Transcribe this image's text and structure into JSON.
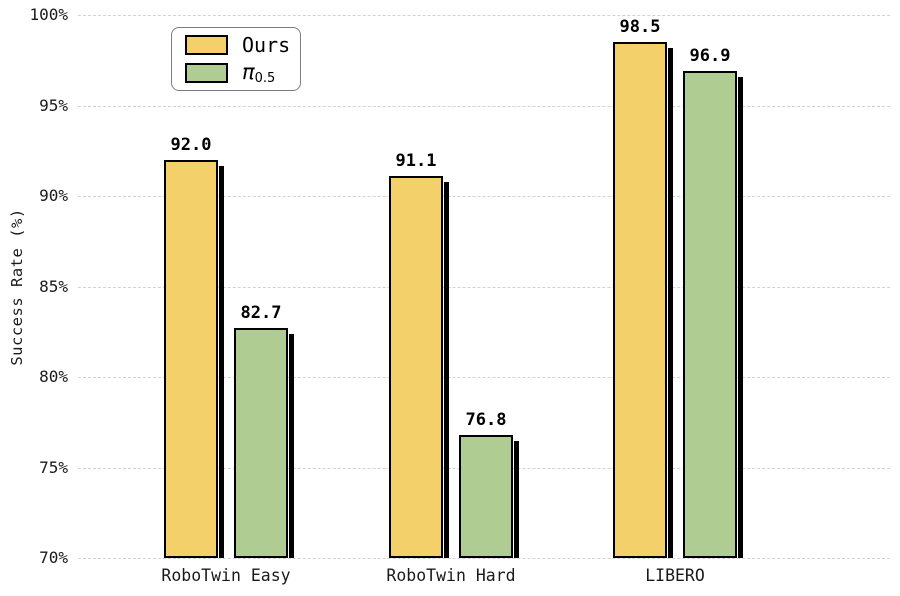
{
  "chart_data": {
    "type": "bar",
    "title": "",
    "xlabel": "",
    "ylabel": "Success Rate (%)",
    "categories": [
      "RoboTwin Easy",
      "RoboTwin Hard",
      "LIBERO"
    ],
    "series": [
      {
        "name": "Ours",
        "name_main": "Ours",
        "name_sub": "",
        "color": "#F4D06A",
        "values": [
          92.0,
          91.1,
          98.5
        ]
      },
      {
        "name": "pi_0.5",
        "name_main": "π",
        "name_sub": "0.5",
        "color": "#AFCD93",
        "values": [
          82.7,
          76.8,
          96.9
        ]
      }
    ],
    "ylim": [
      70,
      100
    ],
    "yticks": [
      70,
      75,
      80,
      85,
      90,
      95,
      100
    ],
    "ytick_labels": [
      "70%",
      "75%",
      "80%",
      "85%",
      "90%",
      "95%",
      "100%"
    ],
    "value_label_decimals": 1,
    "grid": "horizontal-dashed",
    "legend_position": "upper-left",
    "colors": {
      "bar_edge": "#000000",
      "bar_shadow": "#000000",
      "grid": "#d2d2d2",
      "text": "#1a1a1a",
      "legend_border": "#7d7d7d",
      "background": "#ffffff"
    }
  }
}
